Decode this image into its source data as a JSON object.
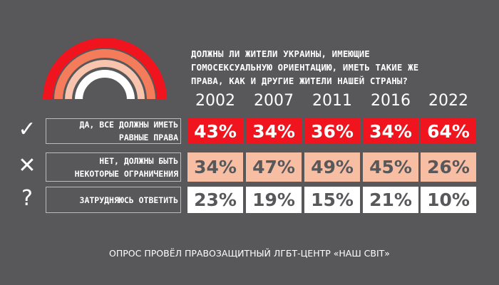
{
  "chart_data": {
    "type": "table",
    "title": "ДОЛЖНЫ ЛИ ЖИТЕЛИ УКРАИНЫ, ИМЕЮЩИЕ\nГОМОСЕКСУАЛЬНУЮ ОРИЕНТАЦИЮ, ИМЕТЬ ТАКИЕ ЖЕ\nПРАВА, КАК И ДРУГИЕ ЖИТЕЛИ НАШЕЙ СТРАНЫ?",
    "categories": [
      "2002",
      "2007",
      "2011",
      "2016",
      "2022"
    ],
    "series": [
      {
        "name": "ДА, ВСЕ ДОЛЖНЫ ИМЕТЬ\nРАВНЫЕ ПРАВА",
        "icon": "check-icon",
        "color": "#f0141e",
        "text_color": "#ffffff",
        "values": [
          43,
          34,
          36,
          34,
          64
        ],
        "labels": [
          "43%",
          "34%",
          "36%",
          "34%",
          "64%"
        ]
      },
      {
        "name": "НЕТ, ДОЛЖНЫ БЫТЬ\nНЕКОТОРЫЕ ОГРАНИЧЕНИЯ",
        "icon": "cross-icon",
        "color": "#f8bea3",
        "text_color": "#58585a",
        "values": [
          34,
          47,
          49,
          45,
          26
        ],
        "labels": [
          "34%",
          "47%",
          "49%",
          "45%",
          "26%"
        ]
      },
      {
        "name": "ЗАТРУДНЯЮСЬ ОТВЕТИТЬ",
        "icon": "question-icon",
        "color": "#ffffff",
        "text_color": "#58585a",
        "values": [
          23,
          19,
          15,
          21,
          10
        ],
        "labels": [
          "23%",
          "19%",
          "15%",
          "21%",
          "10%"
        ]
      }
    ]
  },
  "icons": {
    "check": "✓",
    "cross": "✕",
    "question": "?"
  },
  "footer": "ОПРОС ПРОВЁЛ ПРАВОЗАЩИТНЫЙ ЛГБТ-ЦЕНТР «НАШ СВІТ»"
}
